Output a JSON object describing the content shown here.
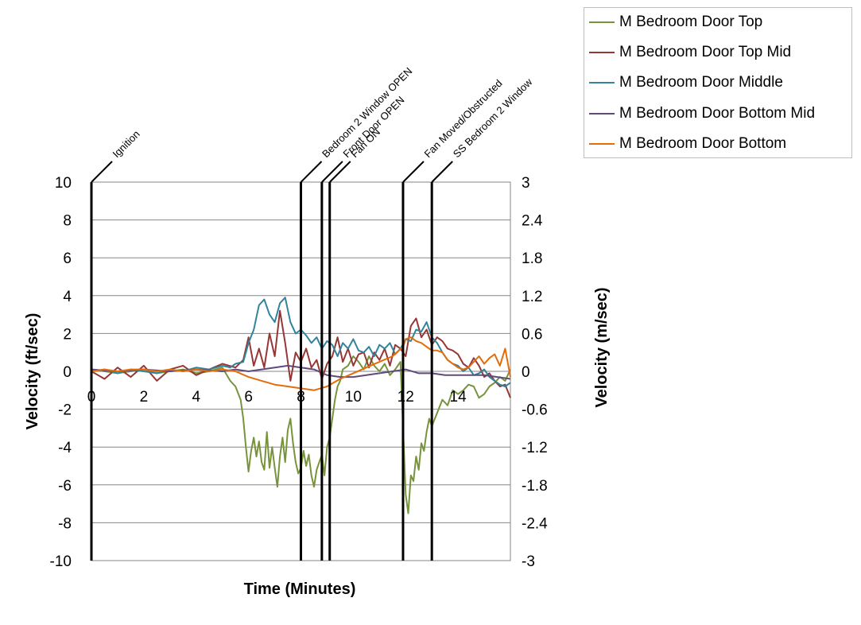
{
  "chart_data": {
    "type": "line",
    "title": "",
    "xlabel": "Time (Minutes)",
    "ylabel": "Velocity (ft/sec)",
    "y2label": "Velocity (m/sec)",
    "xlim": [
      0,
      16
    ],
    "ylim": [
      -10,
      10
    ],
    "y2lim": [
      -3,
      3
    ],
    "x_ticks": [
      "0",
      "2",
      "4",
      "6",
      "8",
      "10",
      "12",
      "14"
    ],
    "y_ticks": [
      "10",
      "8",
      "6",
      "4",
      "2",
      "0",
      "-2",
      "-4",
      "-6",
      "-8",
      "-10"
    ],
    "y2_ticks": [
      "3",
      "2.4",
      "1.8",
      "1.2",
      "0.6",
      "0",
      "-0.6",
      "-1.2",
      "-1.8",
      "-2.4",
      "-3"
    ],
    "grid": "horizontal",
    "legend_position": "top-right",
    "events": [
      {
        "label": "Ignition",
        "x": 0
      },
      {
        "label": "Bedroom 2 Window OPEN",
        "x": 8.0
      },
      {
        "label": "Front Door OPEN",
        "x": 8.8
      },
      {
        "label": "Fan ON",
        "x": 9.1
      },
      {
        "label": "Fan Moved/Obstructed",
        "x": 11.9
      },
      {
        "label": "SS Bedroom 2 Window",
        "x": 13.0
      }
    ],
    "series": [
      {
        "name": "M Bedroom Door Top",
        "color": "#77933c",
        "x": [
          0,
          0.5,
          1,
          1.5,
          2,
          2.5,
          3,
          3.5,
          4,
          4.5,
          5,
          5.3,
          5.5,
          5.7,
          5.8,
          5.9,
          6,
          6.1,
          6.2,
          6.3,
          6.4,
          6.5,
          6.6,
          6.7,
          6.8,
          6.9,
          7,
          7.1,
          7.2,
          7.3,
          7.4,
          7.5,
          7.6,
          7.7,
          7.8,
          7.9,
          8,
          8.1,
          8.2,
          8.3,
          8.4,
          8.5,
          8.6,
          8.7,
          8.8,
          8.9,
          9,
          9.1,
          9.2,
          9.3,
          9.4,
          9.5,
          9.6,
          9.8,
          10,
          10.2,
          10.4,
          10.6,
          10.8,
          11,
          11.2,
          11.4,
          11.6,
          11.8,
          11.9,
          12,
          12.1,
          12.2,
          12.3,
          12.4,
          12.5,
          12.6,
          12.7,
          12.8,
          12.9,
          13,
          13.2,
          13.4,
          13.6,
          13.8,
          14,
          14.2,
          14.4,
          14.6,
          14.8,
          15,
          15.2,
          15.4,
          15.6,
          15.8,
          16
        ],
        "values": [
          0.1,
          0,
          -0.1,
          0,
          0.1,
          -0.1,
          0,
          0.1,
          -0.1,
          0,
          0.2,
          -0.5,
          -0.8,
          -1.5,
          -2.5,
          -4,
          -5.3,
          -4.2,
          -3.5,
          -4.5,
          -3.7,
          -4.8,
          -5.2,
          -3.2,
          -5.1,
          -4,
          -5.1,
          -6.1,
          -4.5,
          -3.5,
          -4.8,
          -3.1,
          -2.5,
          -3.8,
          -4.8,
          -5.4,
          -5.1,
          -4.2,
          -5,
          -4.4,
          -5.5,
          -6.1,
          -5.2,
          -4.8,
          -4.4,
          -5.5,
          -4,
          -3.5,
          -2.5,
          -1.5,
          -0.8,
          -0.5,
          0.1,
          0.3,
          0.8,
          0.5,
          0.1,
          0.8,
          0.3,
          0,
          0.4,
          -0.2,
          0.1,
          0.5,
          -3,
          -6.5,
          -7.5,
          -5.5,
          -5.8,
          -4.5,
          -5.2,
          -3.8,
          -4.2,
          -3.2,
          -2.5,
          -2.9,
          -2.2,
          -1.5,
          -1.8,
          -1,
          -1.2,
          -1,
          -0.7,
          -0.8,
          -1.4,
          -1.2,
          -0.8,
          -0.6,
          -0.3,
          -0.5,
          0.1
        ]
      },
      {
        "name": "M Bedroom Door Top Mid",
        "color": "#953735",
        "x": [
          0,
          0.5,
          1,
          1.5,
          2,
          2.5,
          3,
          3.5,
          4,
          4.5,
          5,
          5.5,
          5.8,
          6,
          6.2,
          6.4,
          6.6,
          6.8,
          7,
          7.2,
          7.4,
          7.6,
          7.8,
          8,
          8.2,
          8.4,
          8.6,
          8.8,
          9,
          9.2,
          9.4,
          9.6,
          9.8,
          10,
          10.2,
          10.4,
          10.6,
          10.8,
          11,
          11.2,
          11.4,
          11.6,
          11.8,
          12,
          12.2,
          12.4,
          12.6,
          12.8,
          13,
          13.2,
          13.4,
          13.6,
          13.8,
          14,
          14.2,
          14.4,
          14.6,
          14.8,
          15,
          15.2,
          15.4,
          15.6,
          15.8,
          16
        ],
        "values": [
          0,
          -0.4,
          0.2,
          -0.3,
          0.3,
          -0.5,
          0.1,
          0.3,
          -0.2,
          0.1,
          0.4,
          0.2,
          0.6,
          1.8,
          0.3,
          1.2,
          0.2,
          2,
          0.8,
          3.2,
          1.5,
          -0.5,
          1,
          0.5,
          1.2,
          0.2,
          0.6,
          -0.4,
          0.4,
          0.8,
          1.8,
          0.5,
          1.2,
          0.3,
          0.9,
          1,
          0.2,
          1,
          0.6,
          1.2,
          0.3,
          1.4,
          1.2,
          0.8,
          2.4,
          2.8,
          1.8,
          2.2,
          1.4,
          1.8,
          1.6,
          1.2,
          1.1,
          0.9,
          0.4,
          0.2,
          0.7,
          0.3,
          -0.3,
          -0.1,
          -0.5,
          -0.8,
          -0.7,
          -1.4
        ]
      },
      {
        "name": "M Bedroom Door Middle",
        "color": "#31849b",
        "x": [
          0,
          0.5,
          1,
          1.5,
          2,
          2.5,
          3,
          3.5,
          4,
          4.5,
          5,
          5.3,
          5.5,
          5.8,
          6,
          6.2,
          6.4,
          6.6,
          6.8,
          7,
          7.2,
          7.4,
          7.6,
          7.8,
          8,
          8.2,
          8.4,
          8.6,
          8.8,
          9,
          9.2,
          9.4,
          9.6,
          9.8,
          10,
          10.2,
          10.4,
          10.6,
          10.8,
          11,
          11.2,
          11.4,
          11.6,
          11.8,
          12,
          12.2,
          12.4,
          12.6,
          12.8,
          13,
          13.2,
          13.4,
          13.6,
          13.8,
          14,
          14.2,
          14.4,
          14.6,
          14.8,
          15,
          15.2,
          15.4,
          15.6,
          15.8,
          16
        ],
        "values": [
          0,
          0.1,
          -0.1,
          0.1,
          0,
          -0.1,
          0.1,
          0,
          0.2,
          0.1,
          0.3,
          0.2,
          0.4,
          0.5,
          1.5,
          2.2,
          3.5,
          3.8,
          3,
          2.6,
          3.6,
          3.9,
          2.6,
          2,
          2.2,
          1.9,
          1.5,
          1.8,
          1.2,
          1.6,
          1.4,
          0.8,
          1.5,
          1.2,
          1.7,
          1.1,
          1,
          1.3,
          0.8,
          1.4,
          1.2,
          1.5,
          0.9,
          1.2,
          1.7,
          1.6,
          2.2,
          2.1,
          2.6,
          1.8,
          1.5,
          1,
          0.6,
          0.4,
          0.3,
          0,
          0.2,
          -0.2,
          -0.1,
          0.1,
          -0.3,
          -0.5,
          -0.7,
          -0.8,
          -0.6
        ]
      },
      {
        "name": "M Bedroom Door Bottom Mid",
        "color": "#604a7b",
        "x": [
          0,
          1,
          2,
          3,
          4,
          5,
          5.5,
          6,
          6.5,
          7,
          7.5,
          8,
          8.5,
          9,
          9.5,
          10,
          10.5,
          11,
          11.5,
          12,
          12.5,
          13,
          13.5,
          14,
          14.5,
          15,
          15.5,
          16
        ],
        "values": [
          0.1,
          0,
          0.1,
          0,
          0.1,
          0,
          0.1,
          0,
          0.1,
          0.2,
          0.3,
          0.2,
          0.1,
          -0.2,
          -0.3,
          -0.3,
          -0.2,
          -0.1,
          0,
          0.1,
          -0.1,
          -0.1,
          -0.2,
          -0.2,
          -0.2,
          -0.2,
          -0.3,
          -0.4
        ]
      },
      {
        "name": "M Bedroom Door Bottom",
        "color": "#e46c0a",
        "x": [
          0,
          0.5,
          1,
          1.5,
          2,
          2.5,
          3,
          3.5,
          4,
          4.5,
          5,
          5.5,
          6,
          6.5,
          7,
          7.5,
          8,
          8.5,
          9,
          9.5,
          10,
          10.5,
          11,
          11.5,
          11.9,
          12,
          12.2,
          12.4,
          12.6,
          12.8,
          13,
          13.2,
          13.4,
          13.6,
          13.8,
          14,
          14.2,
          14.4,
          14.6,
          14.8,
          15,
          15.2,
          15.4,
          15.6,
          15.8,
          16
        ],
        "values": [
          0,
          0.1,
          0,
          0.1,
          0.1,
          0,
          0.1,
          0,
          0.1,
          0,
          0.1,
          0,
          -0.3,
          -0.5,
          -0.7,
          -0.8,
          -0.9,
          -1,
          -0.8,
          -0.4,
          -0.1,
          0.2,
          0.5,
          0.8,
          1.3,
          1.7,
          1.8,
          1.6,
          1.5,
          1.3,
          1.1,
          1.1,
          1,
          0.6,
          0.4,
          0.2,
          0.1,
          0.2,
          0.5,
          0.8,
          0.4,
          0.7,
          0.9,
          0.3,
          1.2,
          -0.3
        ]
      }
    ]
  }
}
